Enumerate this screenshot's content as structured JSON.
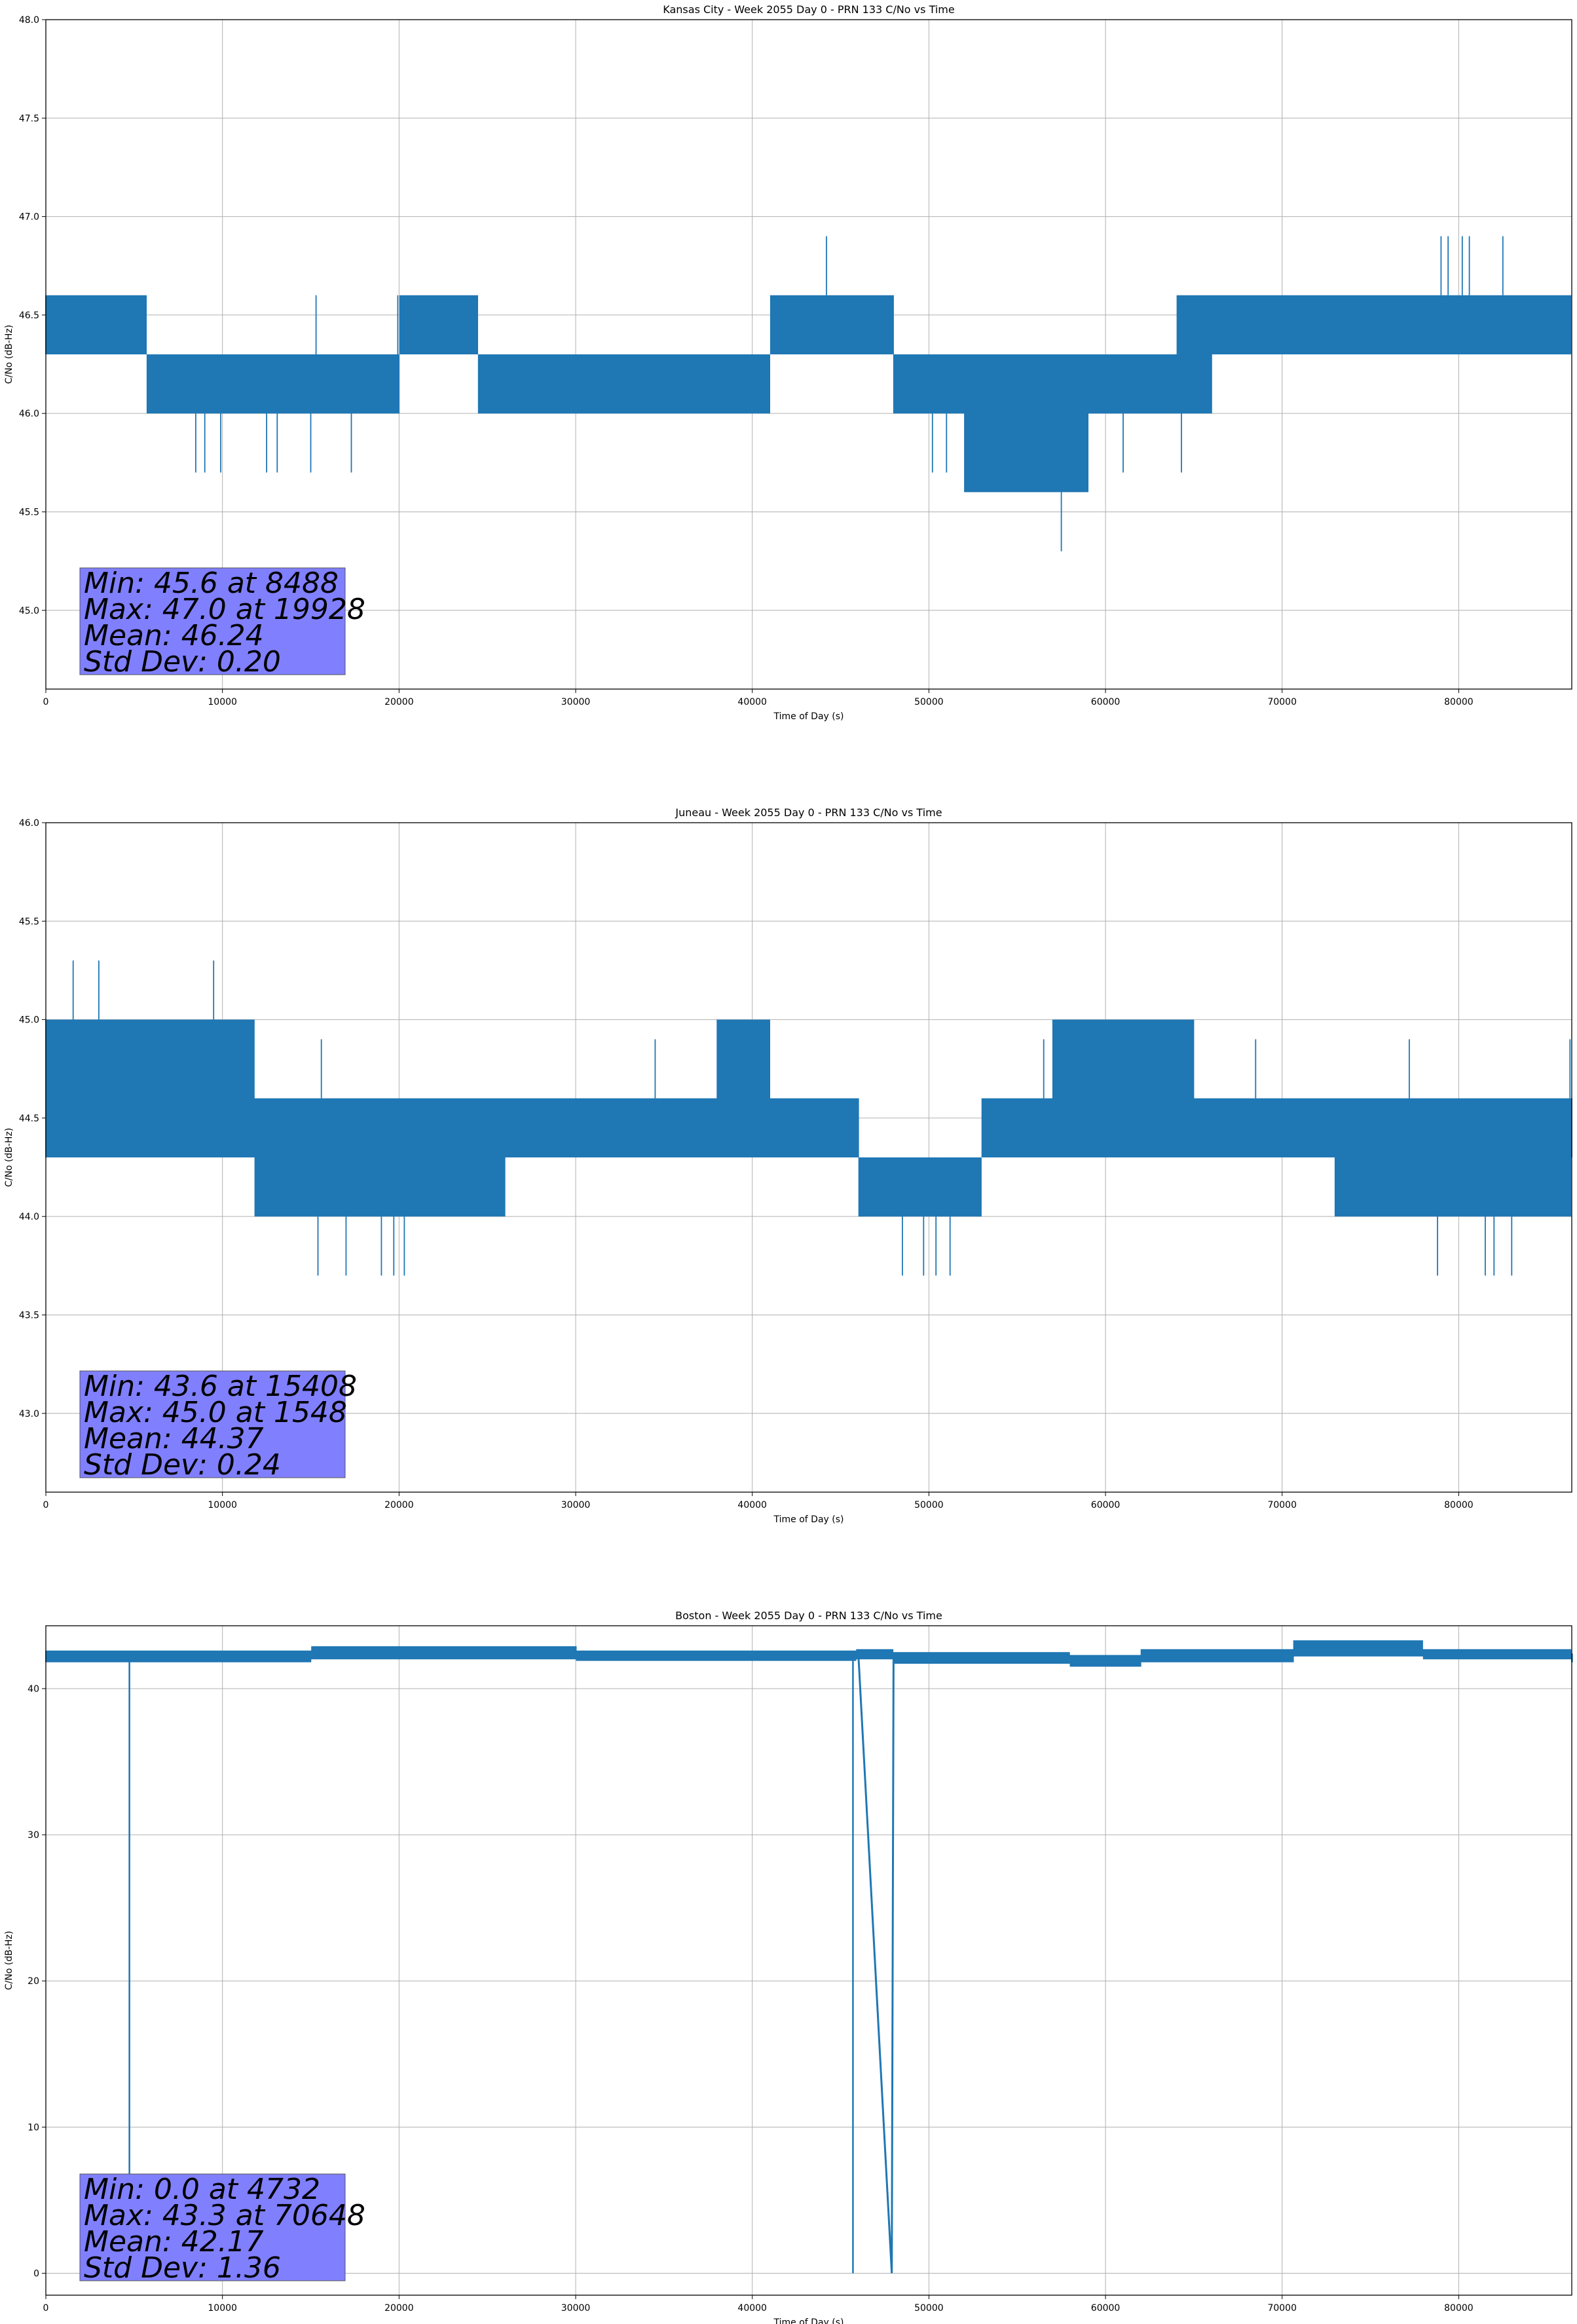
{
  "chart_data": [
    {
      "type": "line",
      "title": "Kansas City - Week 2055 Day 0 - PRN 133 C/No vs Time",
      "xlabel": "Time of Day (s)",
      "ylabel": "C/No (dB-Hz)",
      "xlim": [
        0,
        86400
      ],
      "ylim": [
        44.6,
        48.0
      ],
      "xticks": [
        0,
        10000,
        20000,
        30000,
        40000,
        50000,
        60000,
        70000,
        80000
      ],
      "yticks": [
        45.0,
        45.5,
        46.0,
        46.5,
        47.0,
        47.5,
        48.0
      ],
      "ytick_decimals": 1,
      "grid": true,
      "line_color": "#1f77b4",
      "series": [
        {
          "profile": [
            [
              0,
              46.3,
              46.6
            ],
            [
              5700,
              46.0,
              46.3
            ],
            [
              20000,
              46.3,
              46.6
            ],
            [
              24500,
              46.0,
              46.3
            ],
            [
              41000,
              46.3,
              46.6
            ],
            [
              48000,
              46.0,
              46.3
            ],
            [
              52000,
              45.6,
              46.3
            ],
            [
              59000,
              46.0,
              46.3
            ],
            [
              64000,
              46.0,
              46.6
            ],
            [
              66000,
              46.3,
              46.6
            ],
            [
              86400,
              46.3,
              46.3
            ]
          ],
          "spikes_down": [
            8488,
            9000,
            9900,
            12500,
            13100,
            15000,
            17300,
            50200,
            51000,
            57500,
            61000,
            64300
          ],
          "spikes_up": [
            15300,
            19928,
            44200,
            79000,
            79400,
            80200,
            80600,
            82500
          ]
        }
      ],
      "stats": [
        "Min: 45.6 at 8488",
        "Max: 47.0 at 19928",
        "Mean: 46.24",
        "Std Dev: 0.20"
      ],
      "stats_box_color": "#8080ff"
    },
    {
      "type": "line",
      "title": "Juneau - Week 2055 Day 0 - PRN 133 C/No vs Time",
      "xlabel": "Time of Day (s)",
      "ylabel": "C/No (dB-Hz)",
      "xlim": [
        0,
        86400
      ],
      "ylim": [
        42.6,
        46.0
      ],
      "xticks": [
        0,
        10000,
        20000,
        30000,
        40000,
        50000,
        60000,
        70000,
        80000
      ],
      "yticks": [
        43.0,
        43.5,
        44.0,
        44.5,
        45.0,
        45.5,
        46.0
      ],
      "ytick_decimals": 1,
      "grid": true,
      "line_color": "#1f77b4",
      "series": [
        {
          "profile": [
            [
              0,
              44.3,
              45.0
            ],
            [
              11800,
              44.0,
              44.6
            ],
            [
              21000,
              44.0,
              44.6
            ],
            [
              26000,
              44.3,
              44.6
            ],
            [
              38000,
              44.3,
              45.0
            ],
            [
              41000,
              44.3,
              44.6
            ],
            [
              46000,
              44.0,
              44.3
            ],
            [
              53000,
              44.3,
              44.6
            ],
            [
              57000,
              44.3,
              45.0
            ],
            [
              65000,
              44.3,
              44.6
            ],
            [
              73000,
              44.0,
              44.6
            ],
            [
              86400,
              44.3,
              44.6
            ]
          ],
          "spikes_down": [
            15408,
            17000,
            19000,
            19700,
            20300,
            48500,
            49700,
            50400,
            51200,
            78800,
            81500,
            82000,
            83000
          ],
          "spikes_up": [
            1548,
            3000,
            9500,
            15600,
            34500,
            56500,
            68500,
            77200,
            86300
          ]
        }
      ],
      "stats": [
        "Min: 43.6 at 15408",
        "Max: 45.0 at 1548",
        "Mean: 44.37",
        "Std Dev: 0.24"
      ],
      "stats_box_color": "#8080ff"
    },
    {
      "type": "line",
      "title": "Boston - Week 2055 Day 0 - PRN 133 C/No vs Time",
      "xlabel": "Time of Day (s)",
      "ylabel": "C/No (dB-Hz)",
      "xlim": [
        0,
        86400
      ],
      "ylim": [
        -1.5,
        44.3
      ],
      "xticks": [
        0,
        10000,
        20000,
        30000,
        40000,
        50000,
        60000,
        70000,
        80000
      ],
      "yticks": [
        0,
        10,
        20,
        30,
        40
      ],
      "ytick_decimals": 0,
      "grid": true,
      "line_color": "#1f77b4",
      "series": [
        {
          "profile": [
            [
              0,
              41.8,
              42.6
            ],
            [
              15000,
              42.0,
              42.9
            ],
            [
              30000,
              41.9,
              42.6
            ],
            [
              45900,
              42.0,
              42.7
            ],
            [
              48000,
              41.7,
              42.5
            ],
            [
              58000,
              41.5,
              42.3
            ],
            [
              62000,
              41.8,
              42.7
            ],
            [
              70648,
              42.2,
              43.3
            ],
            [
              78000,
              42.0,
              42.7
            ],
            [
              86400,
              41.8,
              42.4
            ]
          ],
          "spikes_down": [],
          "spikes_up": []
        }
      ],
      "dropouts": [
        [
          4732,
          0.0
        ],
        [
          45700,
          0.0
        ]
      ],
      "ramp": [
        [
          46000,
          42.5
        ],
        [
          47900,
          0.0
        ],
        [
          48000,
          42.3
        ]
      ],
      "stats": [
        "Min: 0.0 at 4732",
        "Max: 43.3 at 70648",
        "Mean: 42.17",
        "Std Dev: 1.36"
      ],
      "stats_box_color": "#8080ff"
    }
  ]
}
